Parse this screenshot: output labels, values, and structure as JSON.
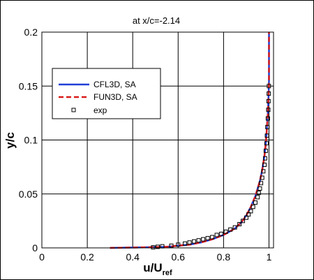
{
  "chart_data": {
    "type": "line",
    "title": "at x/c=-2.14",
    "xlabel": "u/U",
    "xlabel_sub": "ref",
    "ylabel": "y/c",
    "xlim": [
      0,
      1.02
    ],
    "ylim": [
      0,
      0.2
    ],
    "x_ticks": [
      "0",
      "0.2",
      "0.4",
      "0.6",
      "0.8",
      "1"
    ],
    "x_tick_values": [
      0,
      0.2,
      0.4,
      0.6,
      0.8,
      1.0
    ],
    "y_ticks": [
      "0",
      "0.05",
      "0.1",
      "0.15",
      "0.2"
    ],
    "y_tick_values": [
      0,
      0.05,
      0.1,
      0.15,
      0.2
    ],
    "grid": true,
    "legend_position": "upper-left",
    "series": [
      {
        "name": "CFL3D, SA",
        "style": "solid",
        "color": "#1f3fd6",
        "x": [
          0.3,
          0.45,
          0.55,
          0.6,
          0.65,
          0.7,
          0.75,
          0.8,
          0.85,
          0.88,
          0.9,
          0.92,
          0.94,
          0.96,
          0.97,
          0.98,
          0.985,
          0.99,
          0.995,
          0.998,
          1.0,
          1.0
        ],
        "y": [
          0.0,
          0.0005,
          0.001,
          0.002,
          0.003,
          0.005,
          0.008,
          0.012,
          0.018,
          0.024,
          0.03,
          0.038,
          0.048,
          0.062,
          0.072,
          0.085,
          0.095,
          0.108,
          0.125,
          0.14,
          0.155,
          0.2
        ]
      },
      {
        "name": "FUN3D, SA",
        "style": "dashed",
        "color": "#d81a1a",
        "x": [
          0.3,
          0.45,
          0.55,
          0.6,
          0.65,
          0.7,
          0.75,
          0.8,
          0.85,
          0.88,
          0.9,
          0.92,
          0.94,
          0.96,
          0.97,
          0.98,
          0.985,
          0.99,
          0.995,
          0.998,
          1.0,
          1.0
        ],
        "y": [
          0.0,
          0.0005,
          0.001,
          0.002,
          0.003,
          0.005,
          0.008,
          0.012,
          0.018,
          0.024,
          0.03,
          0.038,
          0.048,
          0.062,
          0.072,
          0.085,
          0.095,
          0.108,
          0.125,
          0.14,
          0.155,
          0.2
        ]
      },
      {
        "name": "exp",
        "style": "markers",
        "marker": "square",
        "color": "#000000",
        "x": [
          0.49,
          0.51,
          0.53,
          0.57,
          0.6,
          0.63,
          0.65,
          0.67,
          0.69,
          0.71,
          0.73,
          0.75,
          0.77,
          0.79,
          0.81,
          0.83,
          0.85,
          0.87,
          0.885,
          0.9,
          0.91,
          0.92,
          0.93,
          0.94,
          0.95,
          0.955,
          0.96,
          0.965,
          0.97,
          0.975,
          0.98,
          0.983,
          0.986,
          0.989,
          0.991,
          0.993,
          0.995,
          0.997,
          0.998,
          0.999,
          0.9995
        ],
        "y": [
          0.0005,
          0.001,
          0.0015,
          0.002,
          0.003,
          0.004,
          0.005,
          0.006,
          0.007,
          0.008,
          0.009,
          0.01,
          0.012,
          0.013,
          0.015,
          0.017,
          0.019,
          0.022,
          0.025,
          0.028,
          0.031,
          0.034,
          0.038,
          0.042,
          0.047,
          0.051,
          0.055,
          0.06,
          0.065,
          0.071,
          0.077,
          0.083,
          0.09,
          0.097,
          0.104,
          0.112,
          0.12,
          0.128,
          0.136,
          0.143,
          0.15
        ]
      }
    ]
  }
}
